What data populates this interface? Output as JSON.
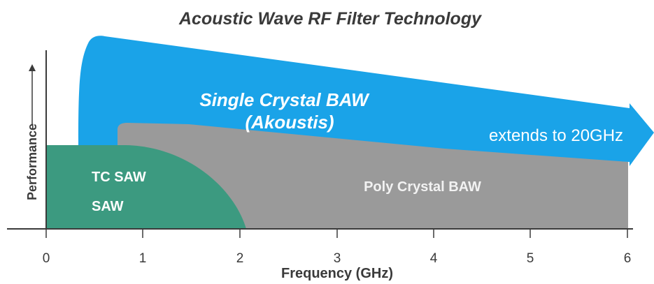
{
  "title": "Acoustic Wave RF Filter Technology",
  "axes": {
    "x_label": "Frequency (GHz)",
    "y_label": "Performance",
    "x_ticks": [
      "0",
      "1",
      "2",
      "3",
      "4",
      "5",
      "6"
    ]
  },
  "regions": {
    "single_crystal_line1": "Single Crystal BAW",
    "single_crystal_line2": "(Akoustis)",
    "extends_label": "extends to 20GHz",
    "poly_label": "Poly Crystal BAW",
    "tc_saw_label": "TC SAW",
    "saw_label": "SAW"
  },
  "colors": {
    "single_crystal": "#1aa3e8",
    "poly_crystal": "#9a9a9a",
    "saw": "#3c9a80",
    "axis": "#3a3a3a"
  }
}
